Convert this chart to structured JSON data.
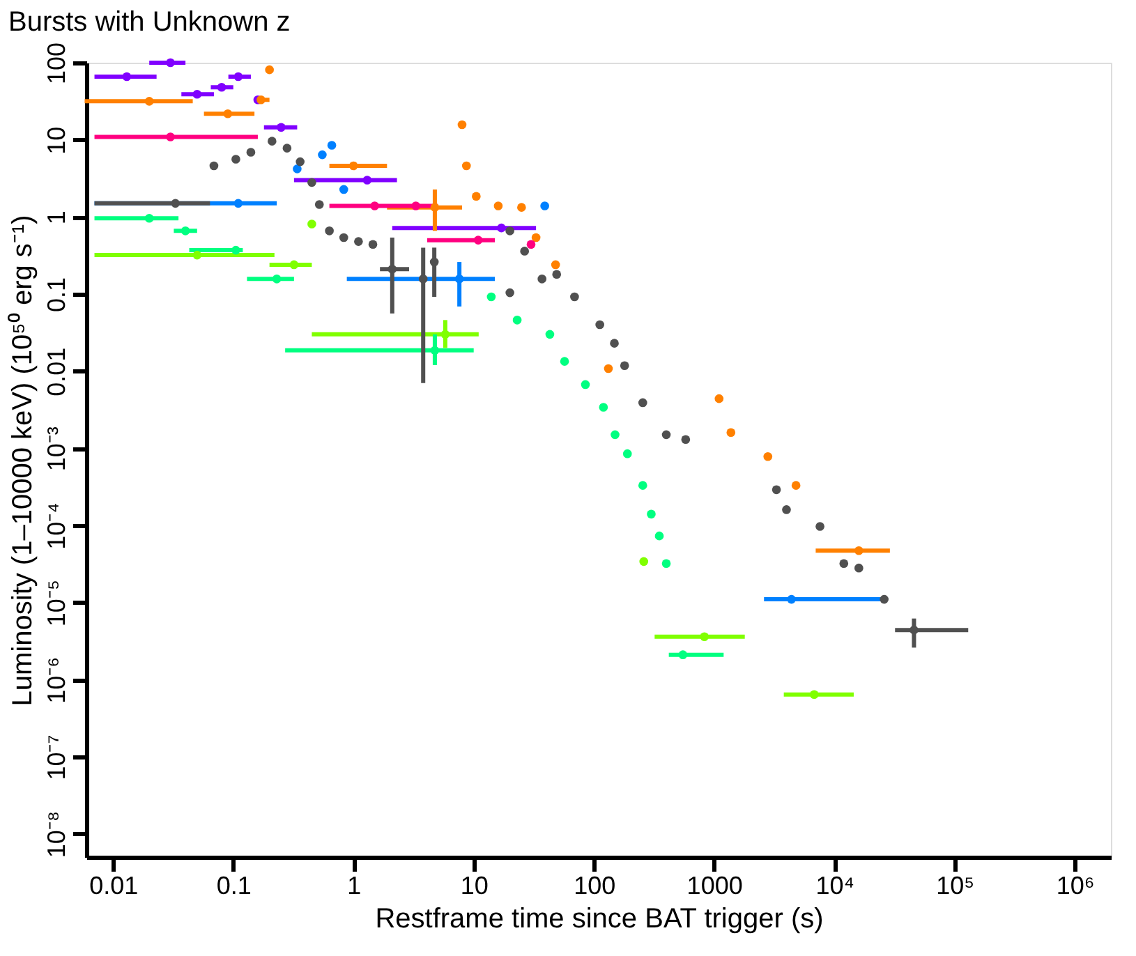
{
  "chart_data": {
    "type": "scatter",
    "title": "Bursts with Unknown z",
    "xlabel": "Restframe time since BAT trigger (s)",
    "ylabel": "Luminosity (1–10000 keV) (10⁵⁰ erg s⁻¹)",
    "log": "xy",
    "grid": false,
    "marker": "circle",
    "xlim": [
      0.006,
      2000000
    ],
    "ylim": [
      5e-09,
      100
    ],
    "xticks": [
      0.01,
      0.1,
      1,
      10,
      100,
      1000,
      {
        "value": 10000,
        "label": "10⁴"
      },
      {
        "value": 100000,
        "label": "10⁵"
      },
      {
        "value": 1000000,
        "label": "10⁶"
      }
    ],
    "yticks": [
      {
        "value": 1e-08,
        "label": "10⁻⁸"
      },
      {
        "value": 1e-07,
        "label": "10⁻⁷"
      },
      {
        "value": 1e-06,
        "label": "10⁻⁶"
      },
      {
        "value": 1e-05,
        "label": "10⁻⁵"
      },
      {
        "value": 0.0001,
        "label": "10⁻⁴"
      },
      {
        "value": 0.001,
        "label": "10⁻³"
      },
      0.01,
      0.1,
      1,
      10,
      100
    ],
    "series": [
      {
        "color": "#8000ff",
        "x": [
          0.013,
          0.03,
          0.11,
          0.08,
          0.05,
          0.16,
          0.25,
          1.3,
          17
        ],
        "values": [
          66,
          100,
          66,
          48,
          39,
          33,
          14.5,
          3.0,
          0.72
        ],
        "xerrors": [
          [
            0.007,
            0.023
          ],
          [
            0.02,
            0.04
          ],
          [
            0.091,
            0.14
          ],
          [
            0.065,
            0.1
          ],
          [
            0.037,
            0.069
          ],
          null,
          [
            0.18,
            0.34
          ],
          [
            0.32,
            2.3
          ],
          [
            2.1,
            33
          ]
        ],
        "errors": [
          null,
          null,
          null,
          null,
          null,
          null,
          null,
          null,
          null
        ]
      },
      {
        "color": "#ff8000",
        "x": [
          0.02,
          0.09,
          0.17,
          0.2,
          1,
          8,
          8.7,
          4.75,
          10.5,
          16,
          25,
          33,
          48,
          132,
          1100,
          1380,
          2800,
          4800,
          16000
        ],
        "values": [
          31.6,
          21.8,
          33,
          81,
          4.6,
          15.7,
          4.6,
          1.33,
          1.85,
          1.39,
          1.33,
          0.54,
          0.24,
          0.0108,
          0.0044,
          0.0016,
          0.00078,
          0.00033,
          4.7e-05
        ],
        "xerrors": [
          [
            0.0058,
            0.046
          ],
          [
            0.057,
            0.15
          ],
          [
            0.15,
            0.2
          ],
          null,
          [
            0.63,
            1.9
          ],
          null,
          null,
          [
            1.9,
            8
          ],
          null,
          null,
          null,
          null,
          null,
          null,
          null,
          null,
          null,
          null,
          [
            7000,
            29000
          ]
        ],
        "errors": [
          null,
          null,
          null,
          null,
          null,
          null,
          null,
          [
            0.66,
            2.27
          ],
          null,
          null,
          null,
          null,
          null,
          null,
          null,
          null,
          null,
          null,
          null
        ]
      },
      {
        "color": "#ff0080",
        "x": [
          0.03,
          1.5,
          3.3,
          10.9,
          30
        ],
        "values": [
          10.9,
          1.39,
          1.39,
          0.5,
          0.44
        ],
        "xerrors": [
          [
            0.007,
            0.16
          ],
          [
            0.63,
            5
          ],
          null,
          [
            4.1,
            15
          ],
          null
        ],
        "errors": [
          null,
          null,
          null,
          null,
          null
        ]
      },
      {
        "color": "#0080ff",
        "x": [
          0.11,
          7.6,
          0.55,
          0.66,
          0.34,
          0.83,
          39,
          4400
        ],
        "values": [
          1.5,
          0.157,
          6.4,
          8.5,
          4.2,
          2.27,
          1.39,
          1.1e-05
        ],
        "xerrors": [
          [
            0.007,
            0.23
          ],
          [
            0.88,
            15
          ],
          null,
          null,
          null,
          null,
          null,
          [
            2600,
            25000
          ]
        ],
        "errors": [
          null,
          [
            0.069,
            0.26
          ],
          null,
          null,
          null,
          null,
          null,
          null
        ]
      },
      {
        "color": "#505050",
        "x": [
          0.033,
          0.069,
          0.105,
          0.14,
          0.21,
          0.28,
          0.36,
          0.45,
          0.52,
          0.63,
          0.83,
          1.1,
          1.45,
          2.1,
          3.8,
          4.7,
          20,
          20,
          26.5,
          37,
          49,
          69,
          112,
          148,
          180,
          255,
          400,
          580,
          3300,
          4000,
          7600,
          12000,
          16000,
          26000,
          46000
        ],
        "values": [
          1.5,
          4.6,
          5.6,
          6.9,
          9.6,
          7.8,
          5.2,
          2.8,
          1.45,
          0.66,
          0.54,
          0.48,
          0.44,
          0.21,
          0.157,
          0.26,
          0.66,
          0.104,
          0.36,
          0.157,
          0.18,
          0.092,
          0.04,
          0.023,
          0.0118,
          0.0039,
          0.0015,
          0.0013,
          0.00029,
          0.00016,
          9.7e-05,
          3.2e-05,
          2.8e-05,
          1.1e-05,
          4.4e-06
        ],
        "xerrors": [
          [
            0.007,
            0.064
          ],
          null,
          null,
          null,
          null,
          null,
          null,
          null,
          null,
          null,
          null,
          null,
          null,
          [
            1.66,
            2.9
          ],
          null,
          null,
          null,
          null,
          null,
          null,
          null,
          null,
          null,
          null,
          null,
          null,
          null,
          null,
          null,
          null,
          null,
          null,
          null,
          null,
          [
            32000,
            130000
          ]
        ],
        "errors": [
          null,
          null,
          null,
          null,
          null,
          null,
          null,
          null,
          null,
          null,
          null,
          null,
          null,
          [
            0.056,
            0.54
          ],
          [
            0.007,
            0.4
          ],
          [
            0.092,
            0.4
          ],
          null,
          null,
          null,
          null,
          null,
          null,
          null,
          null,
          null,
          null,
          null,
          null,
          null,
          null,
          null,
          null,
          null,
          null,
          [
            2.6e-06,
            6.2e-06
          ]
        ]
      },
      {
        "color": "#00ff80",
        "x": [
          0.02,
          0.04,
          0.105,
          0.23,
          4.75,
          14,
          23,
          43,
          57,
          85,
          120,
          150,
          190,
          255,
          300,
          350,
          400,
          550
        ],
        "values": [
          0.96,
          0.66,
          0.37,
          0.157,
          0.0186,
          0.092,
          0.046,
          0.03,
          0.0134,
          0.0067,
          0.0034,
          0.0015,
          0.00085,
          0.00033,
          0.00014,
          7.3e-05,
          3.2e-05,
          2.1e-06
        ],
        "xerrors": [
          [
            0.007,
            0.035
          ],
          [
            0.032,
            0.05
          ],
          [
            0.043,
            0.12
          ],
          [
            0.13,
            0.32
          ],
          [
            0.27,
            10
          ],
          null,
          null,
          null,
          null,
          null,
          null,
          null,
          null,
          null,
          null,
          null,
          null,
          [
            420,
            1200
          ]
        ],
        "errors": [
          null,
          null,
          null,
          null,
          [
            0.012,
            0.03
          ],
          null,
          null,
          null,
          null,
          null,
          null,
          null,
          null,
          null,
          null,
          null,
          null,
          null
        ]
      },
      {
        "color": "#80ff00",
        "x": [
          0.05,
          0.32,
          0.45,
          5.8,
          260,
          830,
          6800
        ],
        "values": [
          0.32,
          0.24,
          0.81,
          0.03,
          3.4e-05,
          3.6e-06,
          6.4e-07
        ],
        "xerrors": [
          [
            0.007,
            0.22
          ],
          [
            0.2,
            0.45
          ],
          null,
          [
            0.45,
            11
          ],
          null,
          [
            320,
            1800
          ],
          [
            3800,
            14500
          ]
        ],
        "errors": [
          null,
          null,
          null,
          [
            0.02,
            0.046
          ],
          null,
          null,
          null
        ]
      }
    ]
  }
}
